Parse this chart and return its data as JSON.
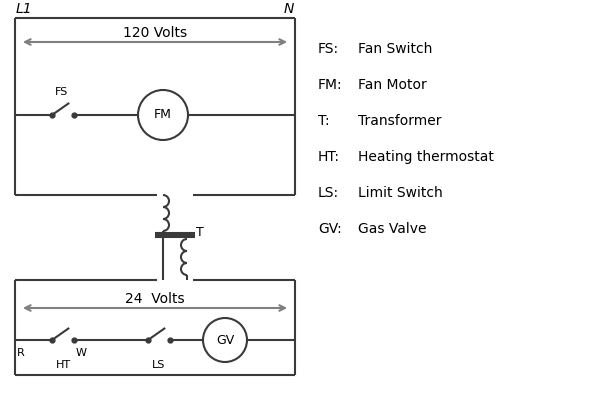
{
  "bg_color": "#ffffff",
  "line_color": "#3a3a3a",
  "arrow_color": "#808080",
  "text_color": "#000000",
  "legend": [
    [
      "FS:",
      "Fan Switch"
    ],
    [
      "FM:",
      "Fan Motor"
    ],
    [
      "T:",
      "Transformer"
    ],
    [
      "HT:",
      "Heating thermostat"
    ],
    [
      "LS:",
      "Limit Switch"
    ],
    [
      "GV:",
      "Gas Valve"
    ]
  ],
  "L1_label": "L1",
  "N_label": "N",
  "volts120_label": "120 Volts",
  "volts24_label": "24  Volts",
  "fs_label": "FS",
  "fm_label": "FM",
  "t_label": "T",
  "gv_label": "GV",
  "r_label": "R",
  "w_label": "W",
  "ht_label": "HT",
  "ls_label": "LS"
}
